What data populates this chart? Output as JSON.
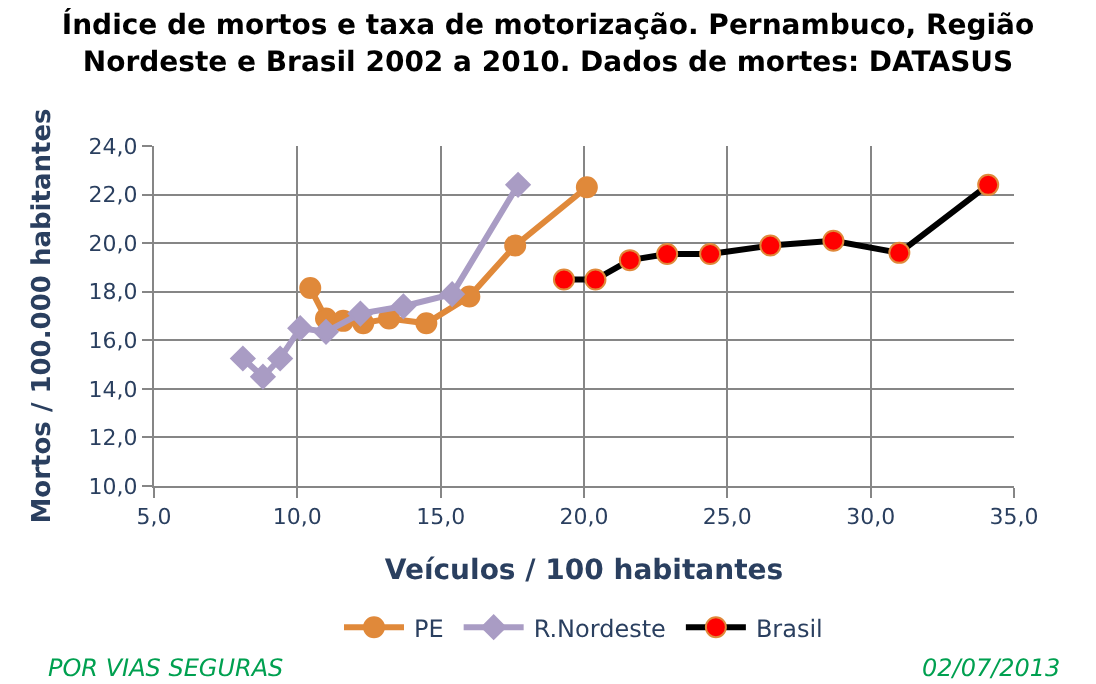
{
  "chart_data": {
    "type": "line",
    "title": "Índice de mortos e taxa de motorização. Pernambuco, Região Nordeste e Brasil 2002 a 2010. Dados de mortes: DATASUS",
    "xlabel": "Veículos / 100 habitantes",
    "ylabel": "Mortos / 100.000 habitantes",
    "series": [
      {
        "name": "PE",
        "color": "#e0893a",
        "marker": "circle",
        "x": [
          10.45,
          11.0,
          11.6,
          12.3,
          13.2,
          14.5,
          16.0,
          17.6,
          20.1
        ],
        "values": [
          18.15,
          16.9,
          16.8,
          16.7,
          16.9,
          16.7,
          17.8,
          19.9,
          22.3
        ]
      },
      {
        "name": "R.Nordeste",
        "color": "#a99cc4",
        "marker": "diamond",
        "x": [
          8.1,
          8.8,
          9.4,
          10.1,
          11.0,
          12.2,
          13.7,
          15.4,
          17.7
        ],
        "values": [
          15.25,
          14.5,
          15.25,
          16.5,
          16.35,
          17.1,
          17.4,
          17.9,
          22.4
        ]
      },
      {
        "name": "Brasil",
        "color": "#000000",
        "colors": [
          "#ff0000",
          "#ff0000",
          "#ff0000",
          "#ff0000",
          "#ff0000",
          "#ff0000",
          "#ff0000",
          "#ff0000",
          "#ff0000"
        ],
        "marker": "circle",
        "x": [
          19.3,
          20.4,
          21.6,
          22.9,
          24.4,
          26.5,
          28.7,
          31.0,
          34.1
        ],
        "values": [
          18.5,
          18.5,
          19.3,
          19.55,
          19.55,
          19.9,
          20.1,
          19.6,
          22.4
        ]
      }
    ],
    "xlim": [
      5,
      35
    ],
    "xticks": [
      {
        "value": 5,
        "label": "5,0"
      },
      {
        "value": 10,
        "label": "10,0"
      },
      {
        "value": 15,
        "label": "15,0"
      },
      {
        "value": 20,
        "label": "20,0"
      },
      {
        "value": 25,
        "label": "25,0"
      },
      {
        "value": 30,
        "label": "30,0"
      },
      {
        "value": 35,
        "label": "35,0"
      }
    ],
    "ylim": [
      10,
      24
    ],
    "yticks": [
      {
        "value": 10,
        "label": "10,0"
      },
      {
        "value": 12,
        "label": "12,0"
      },
      {
        "value": 14,
        "label": "14,0"
      },
      {
        "value": 16,
        "label": "16,0"
      },
      {
        "value": 18,
        "label": "18,0"
      },
      {
        "value": 20,
        "label": "20,0"
      },
      {
        "value": 22,
        "label": "22,0"
      },
      {
        "value": 24,
        "label": "24,0"
      }
    ],
    "grid": true,
    "legend": "bottom",
    "line_style": "solid",
    "annotations": [
      "POR VIAS SEGURAS",
      "02/07/2013"
    ]
  }
}
